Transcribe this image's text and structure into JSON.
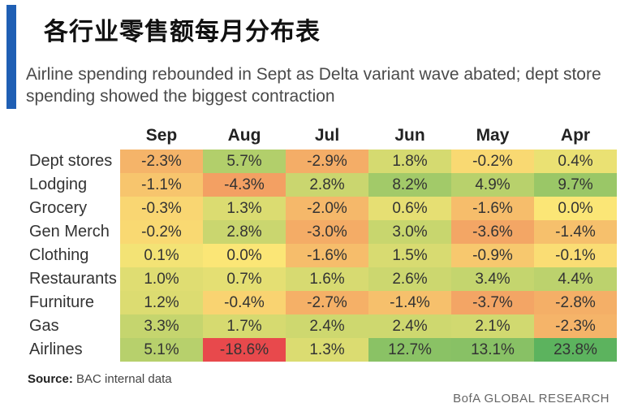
{
  "title": "各行业零售额每月分布表",
  "subtitle": "Airline spending rebounded in Sept as Delta variant wave abated; dept store spending showed the biggest contraction",
  "source_label": "Source:",
  "source_text": "BAC internal data",
  "brand": "BofA GLOBAL RESEARCH",
  "colors": {
    "accent_bar": "#1f5fb4",
    "scale_low": "#e8474b",
    "scale_mid": "#fbe676",
    "scale_high": "#5bb35e"
  },
  "chart_data": {
    "type": "heatmap",
    "columns": [
      "Sep",
      "Aug",
      "Jul",
      "Jun",
      "May",
      "Apr"
    ],
    "rows": [
      "Dept stores",
      "Lodging",
      "Grocery",
      "Gen Merch",
      "Clothing",
      "Restaurants",
      "Furniture",
      "Gas",
      "Airlines"
    ],
    "values": [
      [
        -2.3,
        5.7,
        -2.9,
        1.8,
        -0.2,
        0.4
      ],
      [
        -1.1,
        -4.3,
        2.8,
        8.2,
        4.9,
        9.7
      ],
      [
        -0.3,
        1.3,
        -2.0,
        0.6,
        -1.6,
        0.0
      ],
      [
        -0.2,
        2.8,
        -3.0,
        3.0,
        -3.6,
        -1.4
      ],
      [
        0.1,
        0.0,
        -1.6,
        1.5,
        -0.9,
        -0.1
      ],
      [
        1.0,
        0.7,
        1.6,
        2.6,
        3.4,
        4.4
      ],
      [
        1.2,
        -0.4,
        -2.7,
        -1.4,
        -3.7,
        -2.8
      ],
      [
        3.3,
        1.7,
        2.4,
        2.4,
        2.1,
        -2.3
      ],
      [
        5.1,
        -18.6,
        1.3,
        12.7,
        13.1,
        23.8
      ]
    ],
    "labels": [
      [
        "-2.3%",
        "5.7%",
        "-2.9%",
        "1.8%",
        "-0.2%",
        "0.4%"
      ],
      [
        "-1.1%",
        "-4.3%",
        "2.8%",
        "8.2%",
        "4.9%",
        "9.7%"
      ],
      [
        "-0.3%",
        "1.3%",
        "-2.0%",
        "0.6%",
        "-1.6%",
        "0.0%"
      ],
      [
        "-0.2%",
        "2.8%",
        "-3.0%",
        "3.0%",
        "-3.6%",
        "-1.4%"
      ],
      [
        "0.1%",
        "0.0%",
        "-1.6%",
        "1.5%",
        "-0.9%",
        "-0.1%"
      ],
      [
        "1.0%",
        "0.7%",
        "1.6%",
        "2.6%",
        "3.4%",
        "4.4%"
      ],
      [
        "1.2%",
        "-0.4%",
        "-2.7%",
        "-1.4%",
        "-3.7%",
        "-2.8%"
      ],
      [
        "3.3%",
        "1.7%",
        "2.4%",
        "2.4%",
        "2.1%",
        "-2.3%"
      ],
      [
        "5.1%",
        "-18.6%",
        "1.3%",
        "12.7%",
        "13.1%",
        "23.8%"
      ]
    ],
    "unit": "%"
  }
}
